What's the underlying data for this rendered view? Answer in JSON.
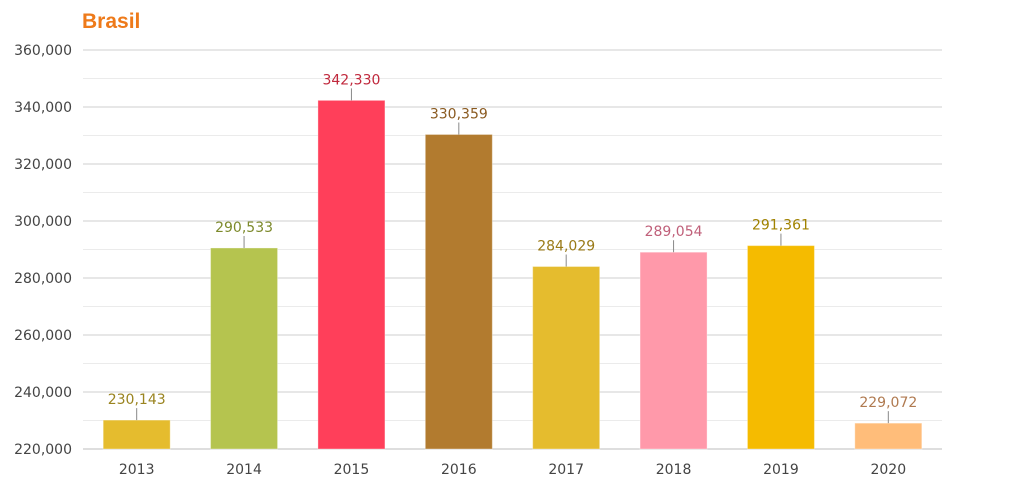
{
  "chart_data": {
    "type": "bar",
    "title": "Brasil",
    "xlabel": "",
    "ylabel": "",
    "ylim": [
      220000,
      360000
    ],
    "yticks": [
      220000,
      240000,
      260000,
      280000,
      300000,
      320000,
      340000,
      360000
    ],
    "ytick_labels": [
      "220,000",
      "240,000",
      "260,000",
      "280,000",
      "300,000",
      "320,000",
      "340,000",
      "360,000"
    ],
    "grid": true,
    "categories": [
      "2013",
      "2014",
      "2015",
      "2016",
      "2017",
      "2018",
      "2019",
      "2020"
    ],
    "values": [
      230143,
      290533,
      342330,
      330359,
      284029,
      289054,
      291361,
      229072
    ],
    "data_labels": [
      "230,143",
      "290,533",
      "342,330",
      "330,359",
      "284,029",
      "289,054",
      "291,361",
      "229,072"
    ],
    "bar_colors": [
      "#e5bc2e",
      "#b5c44f",
      "#ff3f5a",
      "#b27b2f",
      "#e5bc2e",
      "#ff99aa",
      "#f5bb00",
      "#ffbd7a"
    ],
    "label_colors": [
      "#9a8420",
      "#7d8a2c",
      "#c0283c",
      "#8a5a20",
      "#9a7a18",
      "#c0607a",
      "#a08200",
      "#b07a50"
    ]
  }
}
